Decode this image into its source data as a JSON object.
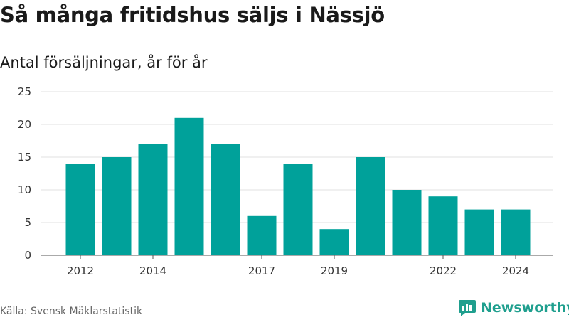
{
  "title": "Så många fritidshus säljs i Nässjö",
  "subtitle": "Antal försäljningar, år för år",
  "source": "Källa: Svensk Mäklarstatistik",
  "logo": {
    "text": "Newsworthy",
    "icon": "newsworthy-logo-icon"
  },
  "colors": {
    "bar": "#00a19a",
    "grid": "#e2e2e2",
    "axis": "#555555",
    "logo": "#1f9f8e"
  },
  "chart_data": {
    "type": "bar",
    "categories": [
      "2012",
      "2013",
      "2014",
      "2015",
      "2016",
      "2017",
      "2018",
      "2019",
      "2020",
      "2021",
      "2022",
      "2023",
      "2024"
    ],
    "values": [
      14,
      15,
      17,
      21,
      17,
      6,
      14,
      4,
      15,
      10,
      9,
      7,
      7
    ],
    "x_tick_labels": [
      "2012",
      "2014",
      "2017",
      "2019",
      "2022",
      "2024"
    ],
    "y_ticks": [
      0,
      5,
      10,
      15,
      20,
      25
    ],
    "ylim": [
      0,
      25
    ],
    "grid": true,
    "legend": "none"
  }
}
